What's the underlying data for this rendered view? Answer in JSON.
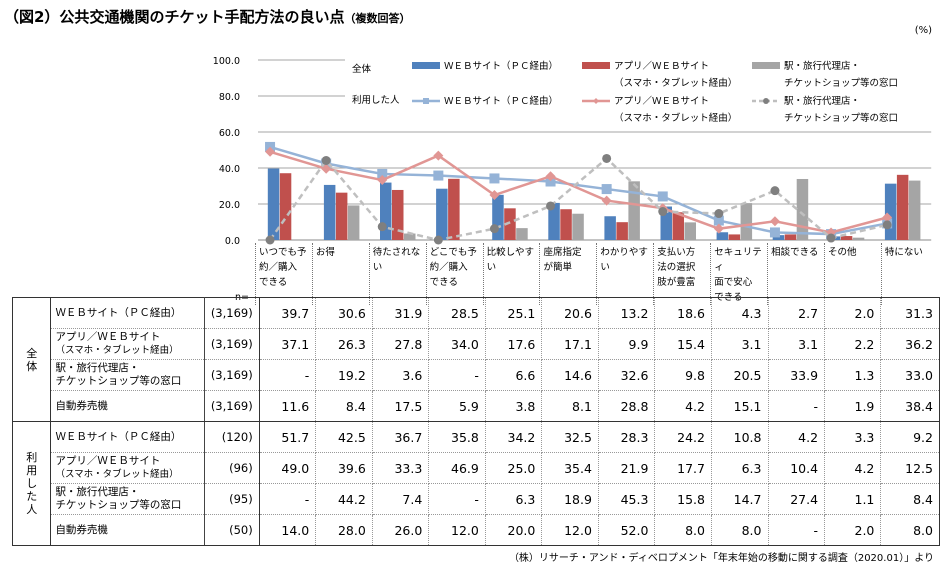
{
  "title": {
    "main": "（図2）公共交通機関のチケット手配方法の良い点",
    "sub": "（複数回答）"
  },
  "unit_label": "(%)",
  "source": "（株）リサーチ・アンド・ディベロプメント「年末年始の移動に関する調査（2020.01）」より",
  "n_label": "n=",
  "colors": {
    "bar_web": "#4f81bd",
    "bar_app": "#c0504d",
    "bar_station": "#a5a5a5",
    "line_web": "#95b3d7",
    "line_app": "#e19694",
    "line_station": "#bfbfbf",
    "marker_station": "#7f7f7f"
  },
  "legend": {
    "group_all": "全体",
    "group_users": "利用した人",
    "web": "ＷＥＢサイト（ＰＣ経由）",
    "app_line1": "アプリ／ＷＥＢサイト",
    "app_line2": "（スマホ・タブレット経由）",
    "station_line1": "駅・旅行代理店・",
    "station_line2": "チケットショップ等の窓口"
  },
  "categories_display": [
    [
      "いつでも予",
      "約／購入",
      "できる"
    ],
    [
      "お得"
    ],
    [
      "待たされな",
      "い"
    ],
    [
      "どこでも予",
      "約／購入",
      "できる"
    ],
    [
      "比較しやす",
      "い"
    ],
    [
      "座席指定",
      "が簡単"
    ],
    [
      "わかりやす",
      "い"
    ],
    [
      "支払い方",
      "法の選択",
      "肢が豊富"
    ],
    [
      "セキュリティ",
      "面で安心",
      "できる"
    ],
    [
      "相談できる"
    ],
    [
      "その他"
    ],
    [
      "特にない"
    ]
  ],
  "table": {
    "groups": [
      {
        "label": [
          "全",
          "体"
        ],
        "rows": [
          {
            "label": [
              "ＷＥＢサイト（ＰＣ経由）"
            ],
            "n": "(3,169)",
            "values": [
              "39.7",
              "30.6",
              "31.9",
              "28.5",
              "25.1",
              "20.6",
              "13.2",
              "18.6",
              "4.3",
              "2.7",
              "2.0",
              "31.3"
            ]
          },
          {
            "label": [
              "アプリ／ＷＥＢサイト",
              "（スマホ・タブレット経由）"
            ],
            "n": "(3,169)",
            "values": [
              "37.1",
              "26.3",
              "27.8",
              "34.0",
              "17.6",
              "17.1",
              "9.9",
              "15.4",
              "3.1",
              "3.1",
              "2.2",
              "36.2"
            ]
          },
          {
            "label": [
              "駅・旅行代理店・",
              "チケットショップ等の窓口"
            ],
            "n": "(3,169)",
            "values": [
              "-",
              "19.2",
              "3.6",
              "-",
              "6.6",
              "14.6",
              "32.6",
              "9.8",
              "20.5",
              "33.9",
              "1.3",
              "33.0"
            ]
          },
          {
            "label": [
              "自動券売機"
            ],
            "n": "(3,169)",
            "values": [
              "11.6",
              "8.4",
              "17.5",
              "5.9",
              "3.8",
              "8.1",
              "28.8",
              "4.2",
              "15.1",
              "-",
              "1.9",
              "38.4"
            ]
          }
        ]
      },
      {
        "label": [
          "利",
          "用",
          "し",
          "た",
          "人"
        ],
        "rows": [
          {
            "label": [
              "ＷＥＢサイト（ＰＣ経由）"
            ],
            "n": "(120)",
            "values": [
              "51.7",
              "42.5",
              "36.7",
              "35.8",
              "34.2",
              "32.5",
              "28.3",
              "24.2",
              "10.8",
              "4.2",
              "3.3",
              "9.2"
            ]
          },
          {
            "label": [
              "アプリ／ＷＥＢサイト",
              "（スマホ・タブレット経由）"
            ],
            "n": "(96)",
            "values": [
              "49.0",
              "39.6",
              "33.3",
              "46.9",
              "25.0",
              "35.4",
              "21.9",
              "17.7",
              "6.3",
              "10.4",
              "4.2",
              "12.5"
            ]
          },
          {
            "label": [
              "駅・旅行代理店・",
              "チケットショップ等の窓口"
            ],
            "n": "(95)",
            "values": [
              "-",
              "44.2",
              "7.4",
              "-",
              "6.3",
              "18.9",
              "45.3",
              "15.8",
              "14.7",
              "27.4",
              "1.1",
              "8.4"
            ]
          },
          {
            "label": [
              "自動券売機"
            ],
            "n": "(50)",
            "values": [
              "14.0",
              "28.0",
              "26.0",
              "12.0",
              "20.0",
              "12.0",
              "52.0",
              "8.0",
              "8.0",
              "-",
              "2.0",
              "8.0"
            ]
          }
        ]
      }
    ]
  },
  "chart_data": {
    "type": "bar",
    "title": "（図2）公共交通機関のチケット手配方法の良い点（複数回答）",
    "xlabel": "",
    "ylabel": "(%)",
    "ylim": [
      0,
      100
    ],
    "yticks": [
      "0.0",
      "20.0",
      "40.0",
      "60.0",
      "80.0",
      "100.0"
    ],
    "grid": true,
    "legend_position": "top-right",
    "categories": [
      "いつでも予約／購入できる",
      "お得",
      "待たされない",
      "どこでも予約／購入できる",
      "比較しやすい",
      "座席指定が簡単",
      "わかりやすい",
      "支払い方法の選択肢が豊富",
      "セキュリティ面で安心できる",
      "相談できる",
      "その他",
      "特にない"
    ],
    "series": [
      {
        "name": "全体 ＷＥＢサイト（ＰＣ経由）",
        "type": "bar",
        "values": [
          39.7,
          30.6,
          31.9,
          28.5,
          25.1,
          20.6,
          13.2,
          18.6,
          4.3,
          2.7,
          2.0,
          31.3
        ]
      },
      {
        "name": "全体 アプリ／ＷＥＢサイト（スマホ・タブレット経由）",
        "type": "bar",
        "values": [
          37.1,
          26.3,
          27.8,
          34.0,
          17.6,
          17.1,
          9.9,
          15.4,
          3.1,
          3.1,
          2.2,
          36.2
        ]
      },
      {
        "name": "全体 駅・旅行代理店・チケットショップ等の窓口",
        "type": "bar",
        "values": [
          0,
          19.2,
          3.6,
          0,
          6.6,
          14.6,
          32.6,
          9.8,
          20.5,
          33.9,
          1.3,
          33.0
        ]
      },
      {
        "name": "利用した人 ＷＥＢサイト（ＰＣ経由）",
        "type": "line",
        "values": [
          51.7,
          42.5,
          36.7,
          35.8,
          34.2,
          32.5,
          28.3,
          24.2,
          10.8,
          4.2,
          3.3,
          9.2
        ]
      },
      {
        "name": "利用した人 アプリ／ＷＥＢサイト（スマホ・タブレット経由）",
        "type": "line",
        "values": [
          49.0,
          39.6,
          33.3,
          46.9,
          25.0,
          35.4,
          21.9,
          17.7,
          6.3,
          10.4,
          4.2,
          12.5
        ]
      },
      {
        "name": "利用した人 駅・旅行代理店・チケットショップ等の窓口",
        "type": "line",
        "dashed": true,
        "values": [
          0,
          44.2,
          7.4,
          0,
          6.3,
          18.9,
          45.3,
          15.8,
          14.7,
          27.4,
          1.1,
          8.4
        ]
      }
    ]
  }
}
